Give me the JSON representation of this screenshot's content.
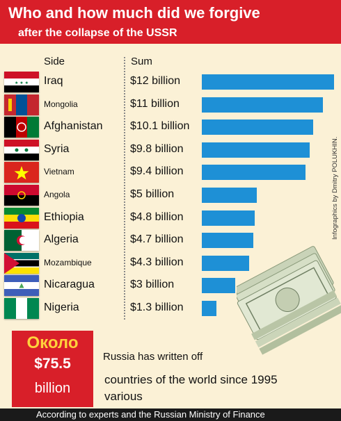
{
  "title": "Who and how much did we forgive",
  "subtitle": "after the collapse of the USSR",
  "side_header": "Side",
  "sum_header": "Sum",
  "credit": "Infographics by Dmitry POLUKHIN.",
  "total": {
    "prefix": "Около",
    "amount": "$75.5",
    "unit": "billion"
  },
  "caption": {
    "line1": "Russia has written off",
    "line2": "countries of the world since 1995",
    "line3": "various"
  },
  "source": "According to experts and the Russian Ministry of Finance",
  "colors": {
    "header": "#d81f29",
    "bar": "#1e90d6",
    "background": "#fbf1d6",
    "total_prefix": "#ffd23c"
  },
  "chart_data": {
    "type": "bar",
    "orientation": "horizontal",
    "categories": [
      "Iraq",
      "Mongolia",
      "Afghanistan",
      "Syria",
      "Vietnam",
      "Angola",
      "Ethiopia",
      "Algeria",
      "Mozambique",
      "Nicaragua",
      "Nigeria"
    ],
    "values": [
      12,
      11,
      10.1,
      9.8,
      9.4,
      5,
      4.8,
      4.7,
      4.3,
      3,
      1.3
    ],
    "value_labels": [
      "$12 billion",
      "$11 billion",
      "$10.1 billion",
      "$9.8 billion",
      "$9.4 billion",
      "$5 billion",
      "$4.8 billion",
      "$4.7 billion",
      "$4.3 billion",
      "$3 billion",
      "$1.3 billion"
    ],
    "flags": [
      "iraq-flag-icon",
      "mongolia-flag-icon",
      "afghanistan-flag-icon",
      "syria-flag-icon",
      "vietnam-flag-icon",
      "angola-flag-icon",
      "ethiopia-flag-icon",
      "algeria-flag-icon",
      "mozambique-flag-icon",
      "nicaragua-flag-icon",
      "nigeria-flag-icon"
    ],
    "unit": "billion USD",
    "xlim": [
      0,
      12
    ],
    "grid": false,
    "legend": "none"
  }
}
